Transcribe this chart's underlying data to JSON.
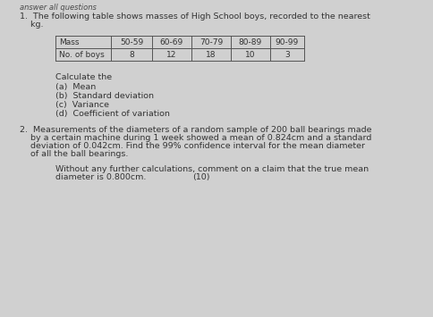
{
  "background_color": "#d0d0d0",
  "q1_intro_line1": "1.  The following table shows masses of High School boys, recorded to the nearest",
  "q1_intro_line2": "    kg.",
  "table_headers": [
    "Mass",
    "50-59",
    "60-69",
    "70-79",
    "80-89",
    "90-99"
  ],
  "table_row": [
    "No. of boys",
    "8",
    "12",
    "18",
    "10",
    "3"
  ],
  "calculate_text": "Calculate the",
  "sub_items": [
    "(a)  Mean",
    "(b)  Standard deviation",
    "(c)  Variance",
    "(d)  Coefficient of variation"
  ],
  "q2_line1": "2.  Measurements of the diameters of a random sample of 200 ball bearings made",
  "q2_line2": "    by a certain machine during 1 week showed a mean of 0.824cm and a standard",
  "q2_line3": "    deviation of 0.042cm. Find the 99% confidence interval for the mean diameter",
  "q2_line4": "    of all the ball bearings.",
  "q2_sub1": "Without any further calculations, comment on a claim that the true mean",
  "q2_sub2": "diameter is 0.800cm.",
  "q2_marks": "(10)",
  "font_size": 6.8,
  "font_size_table": 6.5,
  "text_color": "#333333",
  "table_color": "#555555",
  "header_text": "answer all questions"
}
